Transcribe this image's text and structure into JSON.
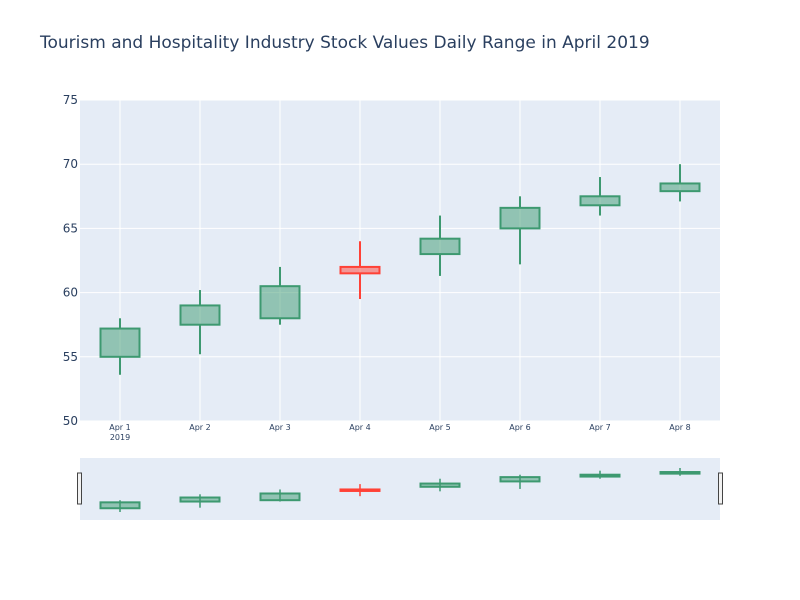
{
  "chart_data": {
    "type": "candlestick",
    "title": "Tourism and Hospitality Industry Stock Values Daily Range in April 2019",
    "xlabel": "",
    "ylabel": "",
    "ylim": [
      50,
      75
    ],
    "yticks": [
      50,
      55,
      60,
      65,
      70,
      75
    ],
    "x_tick_labels": [
      "Apr 1",
      "Apr 2",
      "Apr 3",
      "Apr 4",
      "Apr 5",
      "Apr 6",
      "Apr 7",
      "Apr 8"
    ],
    "x_year_label": "2019",
    "increasing_color": "#3d9970",
    "decreasing_color": "#ff4136",
    "grid": true,
    "range_slider": true,
    "data": [
      {
        "date": "2019-04-01",
        "open": 55.0,
        "high": 58.0,
        "low": 53.6,
        "close": 57.2
      },
      {
        "date": "2019-04-02",
        "open": 57.5,
        "high": 60.2,
        "low": 55.2,
        "close": 59.0
      },
      {
        "date": "2019-04-03",
        "open": 58.0,
        "high": 62.0,
        "low": 57.5,
        "close": 60.5
      },
      {
        "date": "2019-04-04",
        "open": 62.0,
        "high": 64.0,
        "low": 59.5,
        "close": 61.5
      },
      {
        "date": "2019-04-05",
        "open": 63.0,
        "high": 66.0,
        "low": 61.3,
        "close": 64.2
      },
      {
        "date": "2019-04-06",
        "open": 65.0,
        "high": 67.5,
        "low": 62.2,
        "close": 66.6
      },
      {
        "date": "2019-04-07",
        "open": 66.8,
        "high": 69.0,
        "low": 66.0,
        "close": 67.5
      },
      {
        "date": "2019-04-08",
        "open": 67.9,
        "high": 70.0,
        "low": 67.1,
        "close": 68.5
      }
    ]
  }
}
